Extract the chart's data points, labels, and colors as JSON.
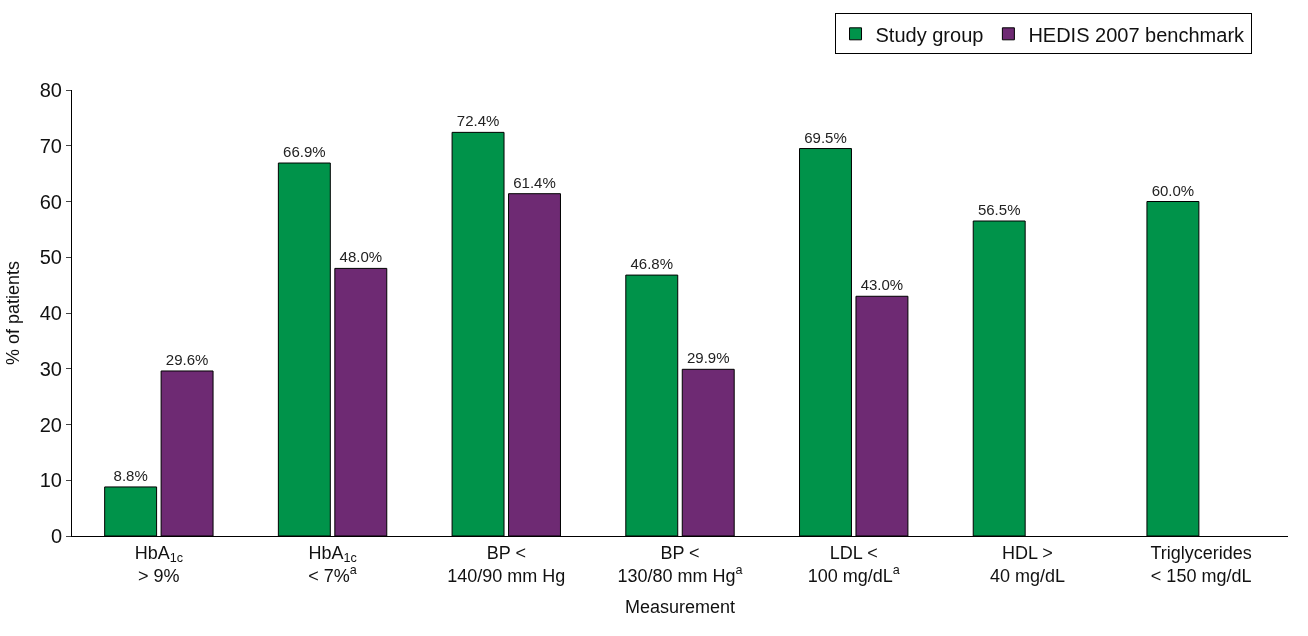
{
  "chart_data": {
    "type": "bar",
    "xlabel": "Measurement",
    "ylabel": "% of patients",
    "categories": [
      "HbA$_{1c}$\n> 9%",
      "HbA$_{1c}$\n< 7%$^{a}$",
      "BP <\n140/90 mm Hg",
      "BP <\n130/80 mm Hg$^{a}$",
      "LDL <\n100 mg/dL$^{a}$",
      "HDL >\n40 mg/dL",
      "Triglycerides\n< 150 mg/dL"
    ],
    "series": [
      {
        "name": "Study group",
        "color": "#00934a",
        "values": [
          8.8,
          66.9,
          72.4,
          46.8,
          69.5,
          56.5,
          60.0
        ],
        "value_labels": [
          "8.8%",
          "66.9%",
          "72.4%",
          "46.8%",
          "69.5%",
          "56.5%",
          "60.0%"
        ]
      },
      {
        "name": "HEDIS 2007 benchmark",
        "color": "#6e2a73",
        "values": [
          29.6,
          48.0,
          61.4,
          29.9,
          43.0,
          null,
          null
        ],
        "value_labels": [
          "29.6%",
          "48.0%",
          "61.4%",
          "29.9%",
          "43.0%",
          null,
          null
        ]
      }
    ],
    "ylim": [
      0,
      80
    ],
    "yticks": [
      0,
      10,
      20,
      30,
      40,
      50,
      60,
      70,
      80
    ],
    "legend": "top right"
  }
}
